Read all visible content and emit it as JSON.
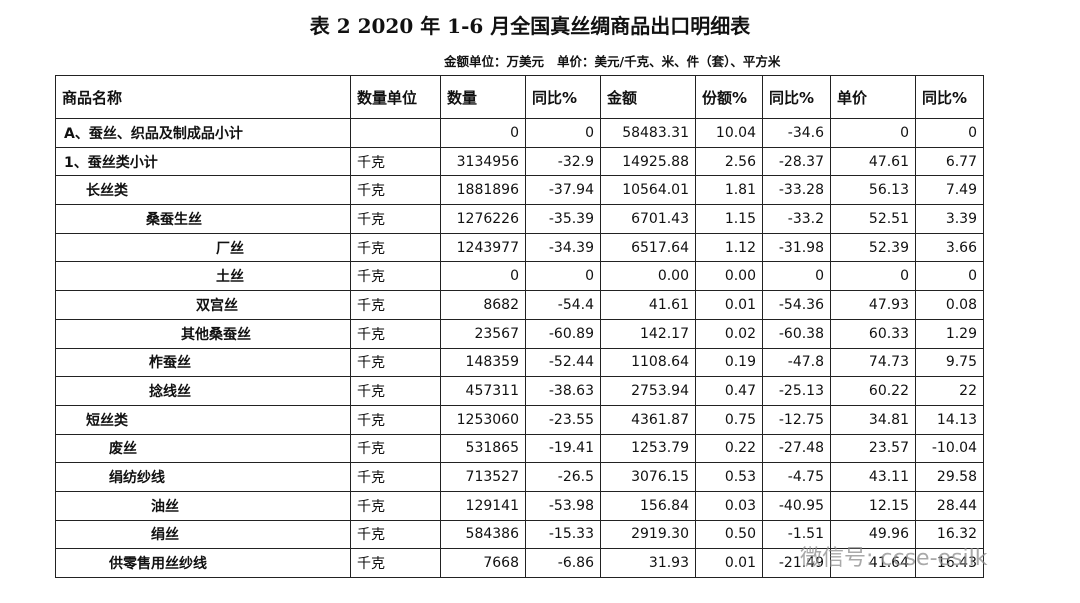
{
  "header": {
    "title": "表 2   2020 年 1-6 月全国真丝绸商品出口明细表",
    "subtitle": "金额单位：万美元   单价：美元/千克、米、件（套）、平方米"
  },
  "table": {
    "columns": [
      "商品名称",
      "数量单位",
      "数量",
      "同比%",
      "金额",
      "份额%",
      "同比%",
      "单价",
      "同比%"
    ],
    "rows": [
      [
        "A、蚕丝、织品及制成品小计",
        "",
        "0",
        "0",
        "58483.31",
        "10.04",
        "-34.6",
        "0",
        "0"
      ],
      [
        "1、蚕丝类小计",
        "千克",
        "3134956",
        "-32.9",
        "14925.88",
        "2.56",
        "-28.37",
        "47.61",
        "6.77"
      ],
      [
        "长丝类",
        "千克",
        "1881896",
        "-37.94",
        "10564.01",
        "1.81",
        "-33.28",
        "56.13",
        "7.49"
      ],
      [
        "桑蚕生丝",
        "千克",
        "1276226",
        "-35.39",
        "6701.43",
        "1.15",
        "-33.2",
        "52.51",
        "3.39"
      ],
      [
        "厂丝",
        "千克",
        "1243977",
        "-34.39",
        "6517.64",
        "1.12",
        "-31.98",
        "52.39",
        "3.66"
      ],
      [
        "土丝",
        "千克",
        "0",
        "0",
        "0.00",
        "0.00",
        "0",
        "0",
        "0"
      ],
      [
        "双宫丝",
        "千克",
        "8682",
        "-54.4",
        "41.61",
        "0.01",
        "-54.36",
        "47.93",
        "0.08"
      ],
      [
        "其他桑蚕丝",
        "千克",
        "23567",
        "-60.89",
        "142.17",
        "0.02",
        "-60.38",
        "60.33",
        "1.29"
      ],
      [
        "柞蚕丝",
        "千克",
        "148359",
        "-52.44",
        "1108.64",
        "0.19",
        "-47.8",
        "74.73",
        "9.75"
      ],
      [
        "捻线丝",
        "千克",
        "457311",
        "-38.63",
        "2753.94",
        "0.47",
        "-25.13",
        "60.22",
        "22"
      ],
      [
        "短丝类",
        "千克",
        "1253060",
        "-23.55",
        "4361.87",
        "0.75",
        "-12.75",
        "34.81",
        "14.13"
      ],
      [
        "废丝",
        "千克",
        "531865",
        "-19.41",
        "1253.79",
        "0.22",
        "-27.48",
        "23.57",
        "-10.04"
      ],
      [
        "绢纺纱线",
        "千克",
        "713527",
        "-26.5",
        "3076.15",
        "0.53",
        "-4.75",
        "43.11",
        "29.58"
      ],
      [
        "油丝",
        "千克",
        "129141",
        "-53.98",
        "156.84",
        "0.03",
        "-40.95",
        "12.15",
        "28.44"
      ],
      [
        "绢丝",
        "千克",
        "584386",
        "-15.33",
        "2919.30",
        "0.50",
        "-1.51",
        "49.96",
        "16.32"
      ],
      [
        "供零售用丝纱线",
        "千克",
        "7668",
        "-6.86",
        "31.93",
        "0.01",
        "-21.49",
        "41.64",
        "16.43"
      ]
    ]
  },
  "watermark": "微信号: ccse-esilk"
}
